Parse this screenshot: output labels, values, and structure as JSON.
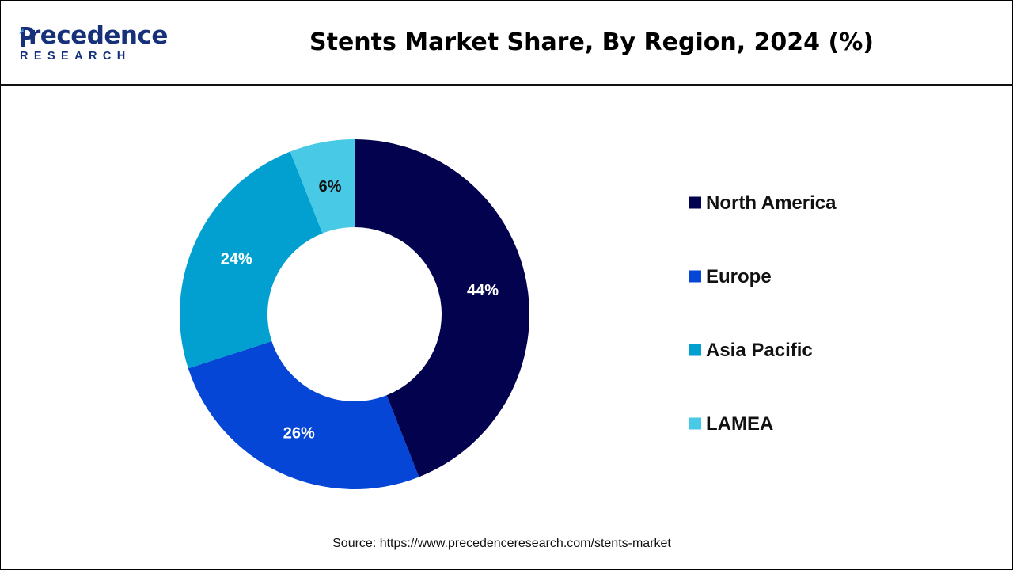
{
  "brand": {
    "name_top": "recedence",
    "name_bottom": "RESEARCH",
    "color": "#16307a"
  },
  "source": "Source: https://www.precedenceresearch.com/stents-market",
  "chart_data": {
    "type": "pie",
    "style": "donut",
    "title": "Stents Market Share, By Region, 2024 (%)",
    "categories": [
      "North America",
      "Europe",
      "Asia Pacific",
      "LAMEA"
    ],
    "values": [
      44,
      26,
      24,
      6
    ],
    "value_labels": [
      "44%",
      "26%",
      "24%",
      "6%"
    ],
    "colors": [
      "#03024f",
      "#0546d6",
      "#02a0d0",
      "#48c9e6"
    ],
    "label_colors": [
      "#ffffff",
      "#ffffff",
      "#ffffff",
      "#111111"
    ],
    "start_angle_deg": 0,
    "direction": "clockwise",
    "legend_position": "right"
  }
}
